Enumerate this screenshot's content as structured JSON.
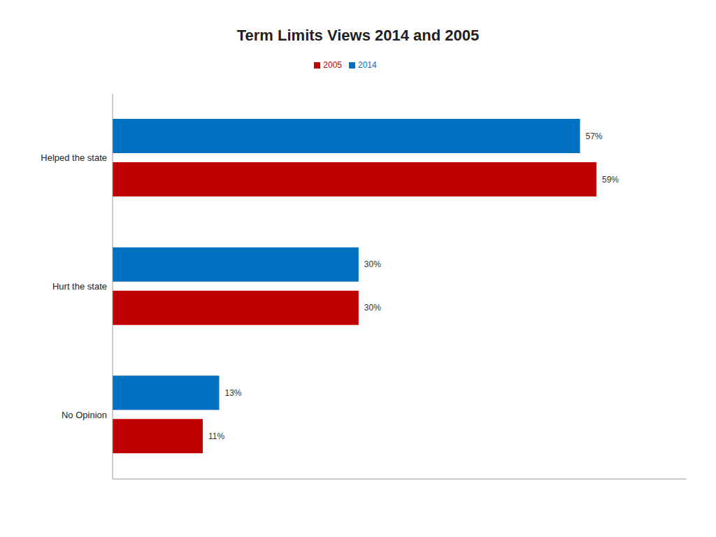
{
  "chart_data": {
    "type": "bar",
    "title": "Term Limits Views 2014 and 2005",
    "orientation": "horizontal",
    "categories": [
      "Helped the state",
      "Hurt the state",
      "No Opinion"
    ],
    "series": [
      {
        "name": "2014",
        "color": "#0070c0",
        "values": [
          57,
          30,
          13
        ],
        "value_labels": [
          "57%",
          "30%",
          "13%"
        ]
      },
      {
        "name": "2005",
        "color": "#c00000",
        "values": [
          59,
          30,
          11
        ],
        "value_labels": [
          "59%",
          "30%",
          "11%"
        ]
      }
    ],
    "xlim": [
      0,
      70
    ],
    "data_labels": true,
    "tick_labels": "y",
    "legend": "top",
    "grid": false
  }
}
